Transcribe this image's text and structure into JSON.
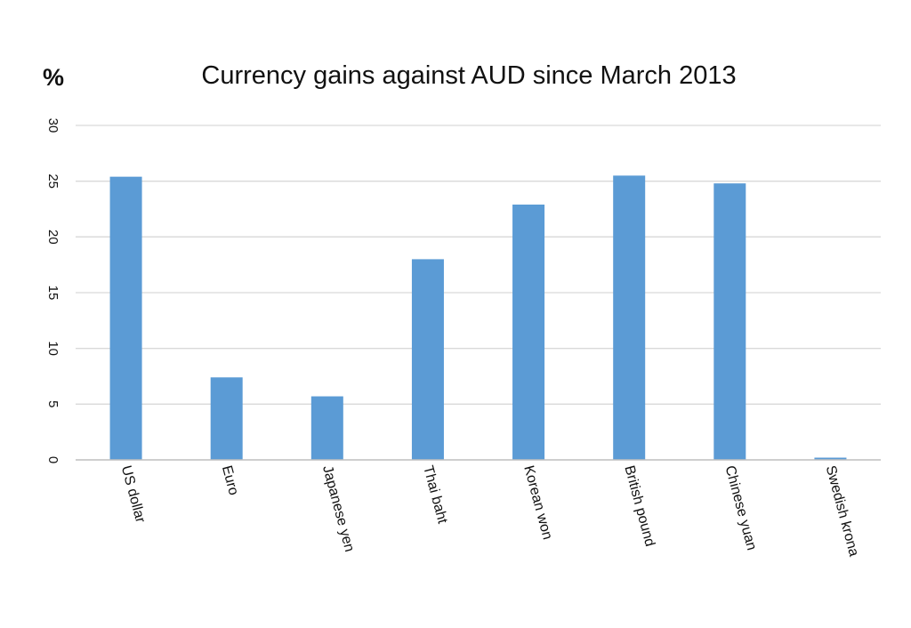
{
  "chart_data": {
    "type": "bar",
    "title": "Currency gains against AUD since March 2013",
    "ylabel": "%",
    "xlabel": "",
    "categories": [
      "US dollar",
      "Euro",
      "Japanese yen",
      "Thai baht",
      "Korean won",
      "British pound",
      "Chinese yuan",
      "Swedish krona"
    ],
    "values": [
      25.4,
      7.4,
      5.7,
      18.0,
      22.9,
      25.5,
      24.8,
      0.2
    ],
    "ylim": [
      0,
      30
    ],
    "yticks": [
      "0",
      "5",
      "10",
      "15",
      "20",
      "25",
      "30"
    ],
    "ytick_values": [
      0,
      5,
      10,
      15,
      20,
      25,
      30
    ],
    "grid": true,
    "legend": "none",
    "bar_color": "#5b9bd5",
    "grid_color": "#d9d9d9"
  }
}
